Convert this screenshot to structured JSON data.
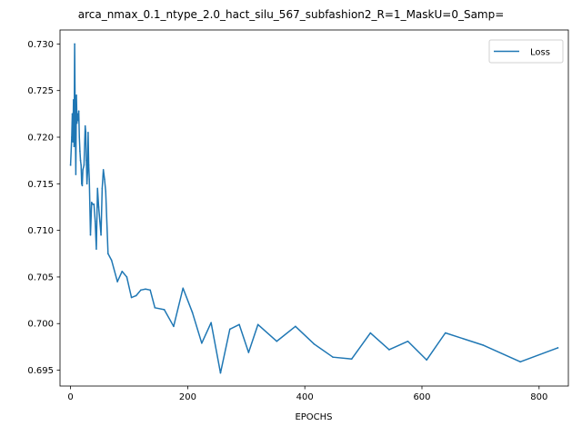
{
  "chart_data": {
    "type": "line",
    "title": "arca_nmax_0.1_ntype_2.0_hact_silu_567_subfashion2_R=1_MaskU=0_Samp=",
    "xlabel": "EPOCHS",
    "ylabel": "",
    "xlim": [
      -18,
      850
    ],
    "ylim": [
      0.6933,
      0.7315
    ],
    "xticks": [
      0,
      200,
      400,
      600,
      800
    ],
    "yticks": [
      0.695,
      0.7,
      0.705,
      0.71,
      0.715,
      0.72,
      0.725,
      0.73
    ],
    "ytick_labels": [
      "0.695",
      "0.700",
      "0.705",
      "0.710",
      "0.715",
      "0.720",
      "0.725",
      "0.730"
    ],
    "grid": false,
    "legend_position": "upper right",
    "color": "#1f77b4",
    "series": [
      {
        "name": "Loss",
        "x": [
          0,
          2,
          3,
          4,
          5,
          6,
          7,
          8,
          9,
          10,
          11,
          12,
          13,
          14,
          15,
          16,
          17,
          18,
          19,
          20,
          21,
          23,
          25,
          26,
          27,
          28,
          29,
          30,
          31,
          32,
          34,
          36,
          38,
          40,
          42,
          44,
          46,
          48,
          50,
          52,
          54,
          56,
          58,
          60,
          64,
          70,
          80,
          88,
          96,
          104,
          112,
          120,
          128,
          136,
          144,
          160,
          176,
          192,
          208,
          224,
          240,
          256,
          272,
          288,
          304,
          320,
          352,
          384,
          416,
          448,
          480,
          512,
          544,
          576,
          608,
          640,
          704,
          768,
          832
        ],
        "y": [
          0.717,
          0.72,
          0.7225,
          0.7195,
          0.724,
          0.719,
          0.73,
          0.7215,
          0.716,
          0.7245,
          0.7215,
          0.7225,
          0.7218,
          0.7228,
          0.72,
          0.7185,
          0.7175,
          0.717,
          0.715,
          0.7148,
          0.7165,
          0.717,
          0.7212,
          0.7205,
          0.7175,
          0.715,
          0.7162,
          0.7205,
          0.717,
          0.7155,
          0.7095,
          0.713,
          0.7128,
          0.7128,
          0.711,
          0.708,
          0.7145,
          0.7125,
          0.711,
          0.7095,
          0.7145,
          0.7165,
          0.7155,
          0.7142,
          0.7075,
          0.7068,
          0.7045,
          0.7056,
          0.705,
          0.7028,
          0.703,
          0.7036,
          0.7037,
          0.7036,
          0.7017,
          0.7015,
          0.6997,
          0.7038,
          0.7012,
          0.6979,
          0.7001,
          0.6947,
          0.6994,
          0.6999,
          0.6969,
          0.6999,
          0.6981,
          0.6997,
          0.6978,
          0.6964,
          0.6962,
          0.699,
          0.6972,
          0.6981,
          0.6961,
          0.699,
          0.6977,
          0.6959,
          0.6974
        ]
      }
    ]
  }
}
